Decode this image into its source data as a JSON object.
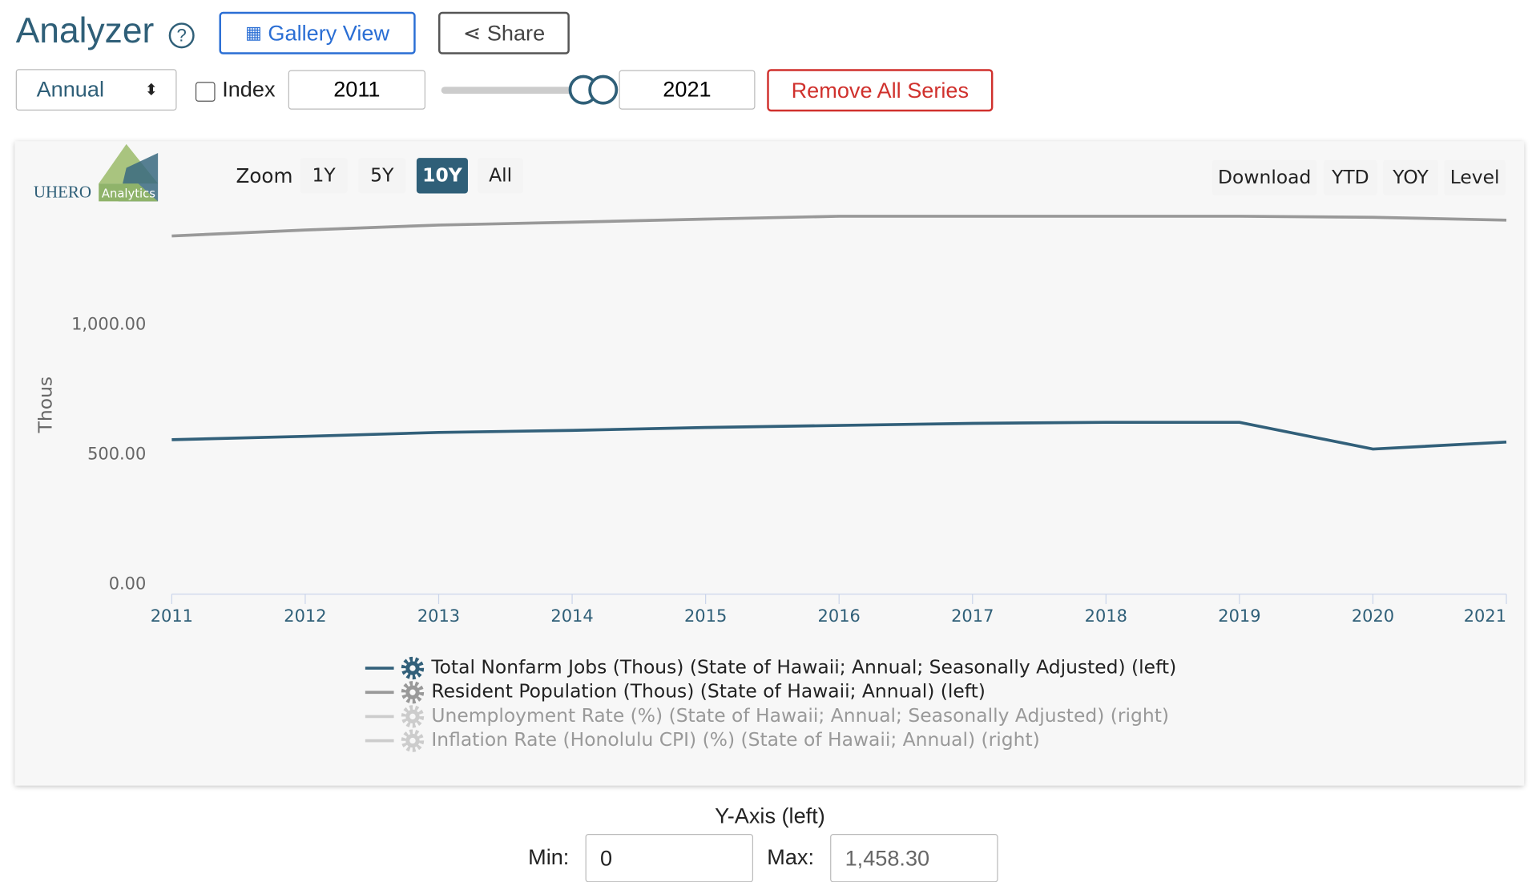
{
  "header": {
    "title": "Analyzer",
    "gallery_button": "Gallery View",
    "share_button": "Share"
  },
  "controls": {
    "frequency": "Annual",
    "index_label": "Index",
    "start_year": "2011",
    "end_year": "2021",
    "remove_button": "Remove All Series"
  },
  "chart_toolbar": {
    "logo_main": "UHERO",
    "logo_sub": "Analytics",
    "zoom_label": "Zoom",
    "zoom_options": [
      "1Y",
      "5Y",
      "10Y",
      "All"
    ],
    "zoom_active": "10Y",
    "actions": [
      "Download",
      "YTD",
      "YOY",
      "Level"
    ]
  },
  "chart_data": {
    "type": "line",
    "y_axis_label": "Thous",
    "x": [
      2011,
      2012,
      2013,
      2014,
      2015,
      2016,
      2017,
      2018,
      2019,
      2020,
      2021
    ],
    "xlim": [
      2011,
      2021
    ],
    "xticks": [
      2011,
      2012,
      2013,
      2014,
      2015,
      2016,
      2017,
      2018,
      2019,
      2020,
      2021
    ],
    "ylim": [
      0,
      1458.3
    ],
    "yticks": [
      {
        "value": 0,
        "label": "0.00"
      },
      {
        "value": 500,
        "label": "500.00"
      },
      {
        "value": 1000,
        "label": "1,000.00"
      }
    ],
    "series": [
      {
        "name": "Total Nonfarm Jobs (Thous) (State of Hawaii; Annual; Seasonally Adjusted) (left)",
        "color": "#32607a",
        "visible": true,
        "values": [
          557,
          570,
          585,
          593,
          604,
          612,
          620,
          624,
          624,
          521,
          548
        ]
      },
      {
        "name": "Resident Population (Thous) (State of Hawaii; Annual) (left)",
        "color": "#999999",
        "visible": true,
        "values": [
          1342,
          1365,
          1384,
          1395,
          1407,
          1418,
          1418,
          1418,
          1418,
          1414,
          1403
        ]
      },
      {
        "name": "Unemployment Rate (%) (State of Hawaii; Annual; Seasonally Adjusted) (right)",
        "color": "#cccccc",
        "visible": false
      },
      {
        "name": "Inflation Rate (Honolulu CPI) (%) (State of Hawaii; Annual) (right)",
        "color": "#cccccc",
        "visible": false
      }
    ]
  },
  "y_axis_panel": {
    "title": "Y-Axis (left)",
    "min_label": "Min:",
    "min_value": "0",
    "max_label": "Max:",
    "max_value": "1,458.30"
  }
}
